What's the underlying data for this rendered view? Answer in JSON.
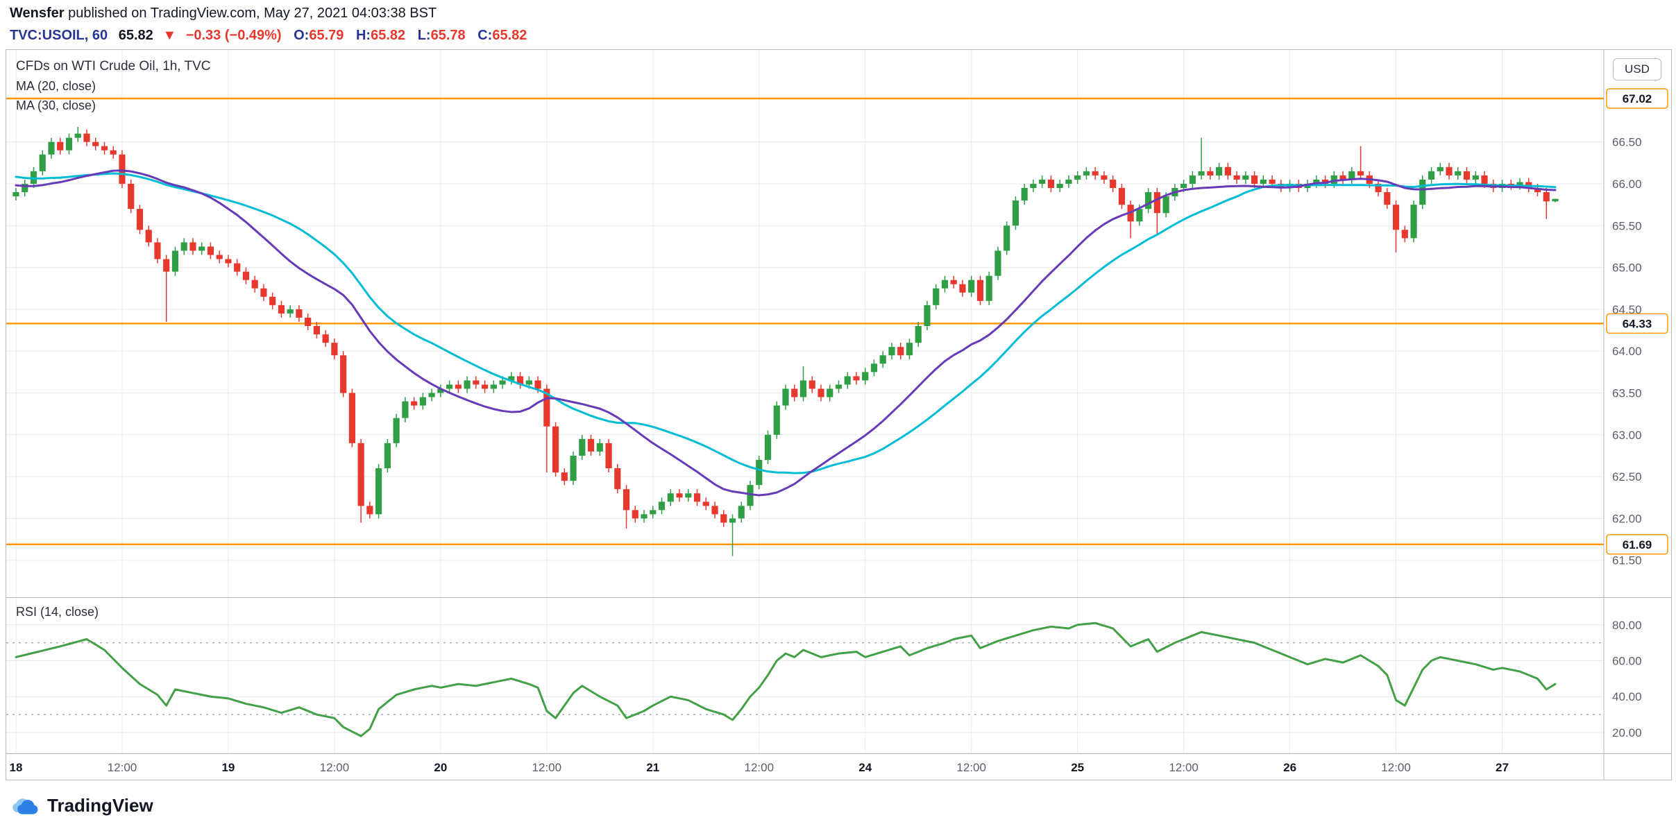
{
  "header": {
    "author": "Wensfer",
    "published_text": " published on TradingView.com, May 27, 2021 04:03:38 BST",
    "symbol_line": {
      "symbol": "TVC:USOIL, 60",
      "last": "65.82",
      "direction_icon": "▼",
      "change": "−0.33 (−0.49%)",
      "o_label": "O:",
      "o": "65.79",
      "h_label": "H:",
      "h": "65.82",
      "l_label": "L:",
      "l": "65.78",
      "c_label": "C:",
      "c": "65.82"
    }
  },
  "legend": {
    "title": "CFDs on WTI Crude Oil, 1h, TVC",
    "ma20": "MA (20, close)",
    "ma30": "MA (30, close)",
    "rsi": "RSI (14, close)"
  },
  "axis": {
    "currency_button": "USD",
    "price_ticks": [
      {
        "label": "66.50",
        "value": 66.5
      },
      {
        "label": "66.00",
        "value": 66.0
      },
      {
        "label": "65.50",
        "value": 65.5
      },
      {
        "label": "65.00",
        "value": 65.0
      },
      {
        "label": "64.50",
        "value": 64.5
      },
      {
        "label": "64.00",
        "value": 64.0
      },
      {
        "label": "63.50",
        "value": 63.5
      },
      {
        "label": "63.00",
        "value": 63.0
      },
      {
        "label": "62.50",
        "value": 62.5
      },
      {
        "label": "62.00",
        "value": 62.0
      },
      {
        "label": "61.50",
        "value": 61.5
      }
    ],
    "rsi_ticks": [
      {
        "label": "80.00",
        "value": 80
      },
      {
        "label": "60.00",
        "value": 60
      },
      {
        "label": "40.00",
        "value": 40
      },
      {
        "label": "20.00",
        "value": 20
      }
    ],
    "time_labels": [
      {
        "text": "18",
        "bar": 0,
        "major": true
      },
      {
        "text": "12:00",
        "bar": 12,
        "major": false
      },
      {
        "text": "19",
        "bar": 24,
        "major": true
      },
      {
        "text": "12:00",
        "bar": 36,
        "major": false
      },
      {
        "text": "20",
        "bar": 48,
        "major": true
      },
      {
        "text": "12:00",
        "bar": 60,
        "major": false
      },
      {
        "text": "21",
        "bar": 72,
        "major": true
      },
      {
        "text": "12:00",
        "bar": 84,
        "major": false
      },
      {
        "text": "24",
        "bar": 96,
        "major": true
      },
      {
        "text": "12:00",
        "bar": 108,
        "major": false
      },
      {
        "text": "25",
        "bar": 120,
        "major": true
      },
      {
        "text": "12:00",
        "bar": 132,
        "major": false
      },
      {
        "text": "26",
        "bar": 144,
        "major": true
      },
      {
        "text": "12:00",
        "bar": 156,
        "major": false
      },
      {
        "text": "27",
        "bar": 168,
        "major": true
      }
    ]
  },
  "footer": {
    "brand": "TradingView"
  },
  "colors": {
    "up": "#2f9e44",
    "down": "#e8382d",
    "ma20": "#673ab7",
    "ma30": "#00bcd4",
    "rsi": "#43a047",
    "hline": "#ff9800",
    "grid": "#e7eaf0",
    "band": "#a9acb6",
    "axis_text": "#5a5e68",
    "sep": "#b2b5be",
    "dark": "#131722"
  },
  "chart_data": {
    "type": "candlestick",
    "symbol": "TVC:USOIL",
    "title": "CFDs on WTI Crude Oil, 1h, TVC",
    "interval_minutes": 60,
    "price_ylim": [
      61.05,
      67.6
    ],
    "rsi_ylim": [
      8,
      95
    ],
    "hlines": [
      {
        "label": "67.02",
        "value": 67.02
      },
      {
        "label": "64.33",
        "value": 64.33
      },
      {
        "label": "61.69",
        "value": 61.69
      }
    ],
    "first_open": 65.85,
    "default_wick": 0.05,
    "ma_periods": [
      20,
      30
    ],
    "rsi_period": 14,
    "rsi_bands": [
      70,
      30
    ],
    "closes": [
      65.9,
      66.0,
      66.15,
      66.35,
      66.5,
      66.4,
      66.55,
      66.6,
      66.5,
      66.45,
      66.4,
      66.35,
      66.0,
      65.7,
      65.45,
      65.3,
      65.1,
      64.95,
      65.2,
      65.3,
      65.2,
      65.25,
      65.15,
      65.1,
      65.05,
      64.95,
      64.85,
      64.75,
      64.65,
      64.55,
      64.45,
      64.5,
      64.4,
      64.3,
      64.2,
      64.1,
      63.95,
      63.5,
      62.9,
      62.15,
      62.05,
      62.6,
      62.9,
      63.2,
      63.4,
      63.35,
      63.45,
      63.5,
      63.55,
      63.6,
      63.55,
      63.65,
      63.6,
      63.55,
      63.6,
      63.65,
      63.7,
      63.6,
      63.65,
      63.55,
      63.1,
      62.55,
      62.45,
      62.75,
      62.95,
      62.8,
      62.9,
      62.6,
      62.35,
      62.1,
      62.0,
      62.05,
      62.1,
      62.2,
      62.3,
      62.25,
      62.3,
      62.2,
      62.15,
      62.05,
      61.95,
      62.0,
      62.15,
      62.4,
      62.7,
      63.0,
      63.35,
      63.55,
      63.45,
      63.65,
      63.55,
      63.45,
      63.55,
      63.6,
      63.7,
      63.65,
      63.75,
      63.85,
      63.95,
      64.05,
      63.95,
      64.1,
      64.3,
      64.55,
      64.75,
      64.85,
      64.8,
      64.7,
      64.85,
      64.6,
      64.9,
      65.2,
      65.5,
      65.8,
      65.95,
      66.0,
      66.05,
      65.95,
      66.0,
      66.05,
      66.1,
      66.15,
      66.1,
      66.05,
      65.95,
      65.75,
      65.55,
      65.7,
      65.9,
      65.65,
      65.85,
      65.95,
      66.0,
      66.1,
      66.15,
      66.1,
      66.2,
      66.1,
      66.05,
      66.1,
      66.0,
      66.05,
      66.0,
      65.95,
      66.0,
      65.95,
      66.0,
      66.05,
      66.0,
      66.1,
      66.05,
      66.15,
      66.1,
      66.0,
      65.9,
      65.75,
      65.45,
      65.35,
      65.75,
      66.05,
      66.15,
      66.2,
      66.1,
      66.15,
      66.05,
      66.1,
      66.0,
      65.95,
      66.0,
      65.98,
      66.02,
      65.95,
      65.9,
      65.79,
      65.82
    ],
    "wick_overrides": {
      "7": {
        "high": 66.68
      },
      "17": {
        "low": 64.35
      },
      "39": {
        "low": 61.95
      },
      "60": {
        "low": 62.55
      },
      "69": {
        "low": 61.88
      },
      "81": {
        "low": 61.55
      },
      "89": {
        "high": 63.82
      },
      "126": {
        "low": 65.35
      },
      "129": {
        "low": 65.4
      },
      "134": {
        "high": 66.55
      },
      "152": {
        "high": 66.45
      },
      "156": {
        "low": 65.18
      },
      "173": {
        "low": 65.58
      },
      "174": {
        "high": 65.82,
        "low": 65.78
      }
    },
    "rsi_keypoints": [
      [
        0,
        62
      ],
      [
        5,
        68
      ],
      [
        8,
        72
      ],
      [
        10,
        66
      ],
      [
        12,
        56
      ],
      [
        14,
        47
      ],
      [
        16,
        41
      ],
      [
        17,
        35
      ],
      [
        18,
        44
      ],
      [
        20,
        42
      ],
      [
        22,
        40
      ],
      [
        24,
        39
      ],
      [
        26,
        36
      ],
      [
        28,
        34
      ],
      [
        30,
        31
      ],
      [
        32,
        34
      ],
      [
        34,
        30
      ],
      [
        36,
        28
      ],
      [
        37,
        23
      ],
      [
        39,
        18
      ],
      [
        40,
        22
      ],
      [
        41,
        33
      ],
      [
        43,
        41
      ],
      [
        45,
        44
      ],
      [
        47,
        46
      ],
      [
        48,
        45
      ],
      [
        50,
        47
      ],
      [
        52,
        46
      ],
      [
        54,
        48
      ],
      [
        56,
        50
      ],
      [
        58,
        47
      ],
      [
        59,
        45
      ],
      [
        60,
        32
      ],
      [
        61,
        28
      ],
      [
        63,
        42
      ],
      [
        64,
        46
      ],
      [
        66,
        40
      ],
      [
        68,
        35
      ],
      [
        69,
        28
      ],
      [
        70,
        30
      ],
      [
        71,
        32
      ],
      [
        72,
        35
      ],
      [
        74,
        40
      ],
      [
        76,
        38
      ],
      [
        78,
        33
      ],
      [
        80,
        30
      ],
      [
        81,
        27
      ],
      [
        82,
        33
      ],
      [
        83,
        40
      ],
      [
        84,
        45
      ],
      [
        85,
        52
      ],
      [
        86,
        60
      ],
      [
        87,
        64
      ],
      [
        88,
        62
      ],
      [
        89,
        66
      ],
      [
        91,
        62
      ],
      [
        93,
        64
      ],
      [
        95,
        65
      ],
      [
        96,
        62
      ],
      [
        98,
        65
      ],
      [
        100,
        68
      ],
      [
        101,
        63
      ],
      [
        103,
        67
      ],
      [
        105,
        70
      ],
      [
        106,
        72
      ],
      [
        108,
        74
      ],
      [
        109,
        67
      ],
      [
        111,
        71
      ],
      [
        113,
        74
      ],
      [
        115,
        77
      ],
      [
        117,
        79
      ],
      [
        119,
        78
      ],
      [
        120,
        80
      ],
      [
        122,
        81
      ],
      [
        124,
        78
      ],
      [
        126,
        68
      ],
      [
        128,
        72
      ],
      [
        129,
        65
      ],
      [
        131,
        70
      ],
      [
        133,
        74
      ],
      [
        134,
        76
      ],
      [
        136,
        74
      ],
      [
        138,
        72
      ],
      [
        140,
        70
      ],
      [
        142,
        66
      ],
      [
        144,
        62
      ],
      [
        146,
        58
      ],
      [
        148,
        61
      ],
      [
        150,
        59
      ],
      [
        152,
        63
      ],
      [
        154,
        57
      ],
      [
        155,
        52
      ],
      [
        156,
        38
      ],
      [
        157,
        35
      ],
      [
        158,
        45
      ],
      [
        159,
        55
      ],
      [
        160,
        60
      ],
      [
        161,
        62
      ],
      [
        163,
        60
      ],
      [
        165,
        58
      ],
      [
        167,
        55
      ],
      [
        168,
        56
      ],
      [
        170,
        54
      ],
      [
        172,
        50
      ],
      [
        173,
        44
      ],
      [
        174,
        47
      ]
    ]
  }
}
